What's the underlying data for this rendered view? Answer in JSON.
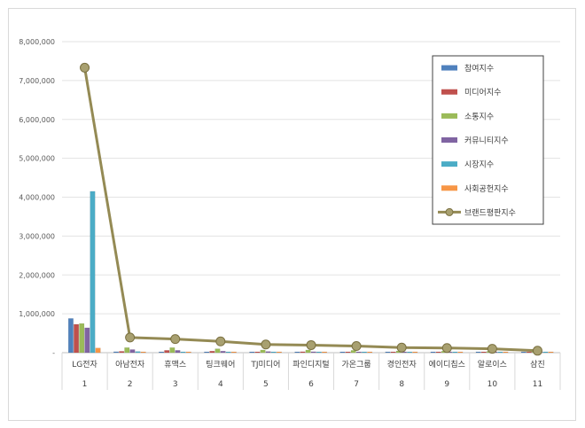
{
  "chart_data": {
    "type": "bar",
    "categories": [
      "LG전자",
      "아남전자",
      "휴맥스",
      "팅크웨어",
      "TJ미디어",
      "파인디지털",
      "가온그룹",
      "경인전자",
      "에이디칩스",
      "알로이스",
      "삼진"
    ],
    "index_labels": [
      "1",
      "2",
      "3",
      "4",
      "5",
      "6",
      "7",
      "8",
      "9",
      "10",
      "11"
    ],
    "ylim": [
      0,
      8000000
    ],
    "y_ticks": [
      0,
      1000000,
      2000000,
      3000000,
      4000000,
      5000000,
      6000000,
      7000000,
      8000000
    ],
    "y_tick_labels": [
      "-",
      "1,000,000",
      "2,000,000",
      "3,000,000",
      "4,000,000",
      "5,000,000",
      "6,000,000",
      "7,000,000",
      "8,000,000"
    ],
    "grid": true,
    "legend_position": "top-right",
    "series": [
      {
        "name": "참여지수",
        "type": "bar",
        "color": "#4f81bd",
        "values": [
          880000,
          25000,
          20000,
          15000,
          12000,
          10000,
          8000,
          8000,
          6000,
          5000,
          3000
        ]
      },
      {
        "name": "미디어지수",
        "type": "bar",
        "color": "#c0504d",
        "values": [
          730000,
          35000,
          60000,
          40000,
          15000,
          25000,
          15000,
          20000,
          10000,
          8000,
          5000
        ]
      },
      {
        "name": "소통지수",
        "type": "bar",
        "color": "#9bbb59",
        "values": [
          750000,
          130000,
          130000,
          100000,
          70000,
          70000,
          60000,
          45000,
          40000,
          35000,
          20000
        ]
      },
      {
        "name": "커뮤니티지수",
        "type": "bar",
        "color": "#8064a2",
        "values": [
          640000,
          80000,
          60000,
          40000,
          30000,
          25000,
          20000,
          15000,
          15000,
          10000,
          5000
        ]
      },
      {
        "name": "시장지수",
        "type": "bar",
        "color": "#4bacc6",
        "values": [
          4150000,
          30000,
          15000,
          20000,
          15000,
          12000,
          10000,
          10000,
          8000,
          6000,
          4000
        ]
      },
      {
        "name": "사회공헌지수",
        "type": "bar",
        "color": "#f79646",
        "values": [
          120000,
          5000,
          5000,
          3000,
          2000,
          2000,
          2000,
          1000,
          1000,
          1000,
          1000
        ]
      },
      {
        "name": "브랜드평판지수",
        "type": "line",
        "color": "#948a54",
        "values": [
          7330000,
          390000,
          350000,
          290000,
          210000,
          195000,
          170000,
          130000,
          120000,
          100000,
          50000
        ]
      }
    ]
  }
}
